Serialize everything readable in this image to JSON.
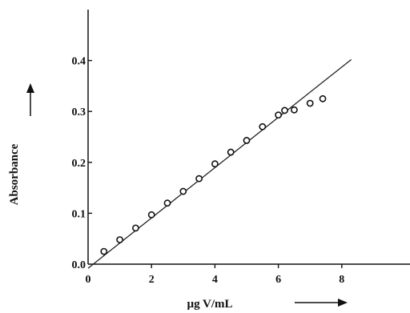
{
  "chart_data": {
    "type": "scatter",
    "title": "",
    "xlabel": "µg V/mL",
    "ylabel": "Absorbance",
    "xlim": [
      0,
      10
    ],
    "ylim": [
      0,
      0.45
    ],
    "x_ticks": [
      {
        "value": 0,
        "label": "0"
      },
      {
        "value": 2,
        "label": "2"
      },
      {
        "value": 4,
        "label": "4"
      },
      {
        "value": 6,
        "label": "6"
      },
      {
        "value": 8,
        "label": "8"
      }
    ],
    "y_ticks": [
      {
        "value": 0,
        "label": "0.0"
      },
      {
        "value": 0.1,
        "label": "0.1"
      },
      {
        "value": 0.2,
        "label": "0.2"
      },
      {
        "value": 0.3,
        "label": "0.3"
      },
      {
        "value": 0.4,
        "label": "0.4"
      }
    ],
    "grid": false,
    "legend": "none",
    "series": [
      {
        "points": [
          {
            "x": 0.5,
            "y": 0.025
          },
          {
            "x": 1.0,
            "y": 0.048
          },
          {
            "x": 1.5,
            "y": 0.071
          },
          {
            "x": 2.0,
            "y": 0.097
          },
          {
            "x": 2.5,
            "y": 0.12
          },
          {
            "x": 3.0,
            "y": 0.143
          },
          {
            "x": 3.5,
            "y": 0.168
          },
          {
            "x": 4.0,
            "y": 0.197
          },
          {
            "x": 4.5,
            "y": 0.22
          },
          {
            "x": 5.0,
            "y": 0.243
          },
          {
            "x": 5.5,
            "y": 0.27
          },
          {
            "x": 6.0,
            "y": 0.293
          },
          {
            "x": 6.2,
            "y": 0.302
          },
          {
            "x": 6.5,
            "y": 0.303
          },
          {
            "x": 7.0,
            "y": 0.316
          },
          {
            "x": 7.4,
            "y": 0.325
          }
        ]
      }
    ],
    "fit_line": {
      "x": [
        0,
        8.3
      ],
      "y": [
        -0.008,
        0.402
      ]
    },
    "colors": {
      "ink": "#111111",
      "marker_fill": "#ffffff"
    }
  }
}
